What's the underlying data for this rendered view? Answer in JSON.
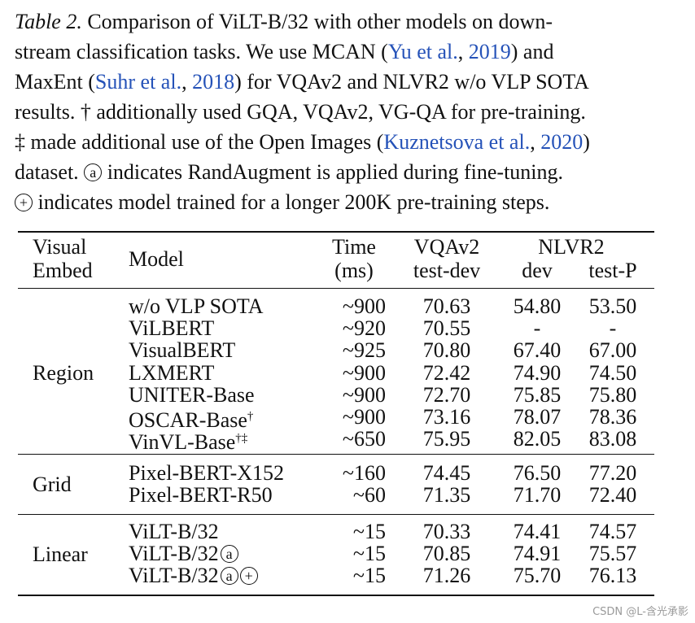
{
  "caption": {
    "label": "Table 2.",
    "l1": " Comparison of ViLT-B/32 with other models on down-",
    "l2a": "stream classification tasks. We use MCAN (",
    "cite1_author": "Yu et al.",
    "cite1_sep": ", ",
    "cite1_year": "2019",
    "l2b": ") and",
    "l3a": "MaxEnt (",
    "cite2_author": "Suhr et al.",
    "cite2_sep": ", ",
    "cite2_year": "2018",
    "l3b": ") for VQAv2 and NLVR2 w/o VLP SOTA",
    "l4": "results. † additionally used GQA, VQAv2, VG-QA for pre-training.",
    "l5a": "‡ made additional use of the Open Images (",
    "cite3_author": "Kuznetsova et al.",
    "cite3_sep": ", ",
    "cite3_year": "2020",
    "l5b": ")",
    "l6a": "dataset. ",
    "circ_a": "a",
    "l6b": " indicates RandAugment is applied during fine-tuning.",
    "circ_plus": "+",
    "l7b": " indicates model trained for a longer 200K pre-training steps."
  },
  "table": {
    "headers": {
      "embed_1": "Visual",
      "embed_2": "Embed",
      "model": "Model",
      "time_1": "Time",
      "time_2": "(ms)",
      "vqa_1": "VQAv2",
      "vqa_2": "test-dev",
      "nlvr": "NLVR2",
      "dev": "dev",
      "testp": "test-P"
    },
    "groups": [
      {
        "embed": "Region",
        "rows": [
          {
            "model": "w/o VLP SOTA",
            "sup": "",
            "time": "~900",
            "vqa": "70.63",
            "dev": "54.80",
            "testp": "53.50"
          },
          {
            "model": "ViLBERT",
            "sup": "",
            "time": "~920",
            "vqa": "70.55",
            "dev": "-",
            "testp": "-"
          },
          {
            "model": "VisualBERT",
            "sup": "",
            "time": "~925",
            "vqa": "70.80",
            "dev": "67.40",
            "testp": "67.00"
          },
          {
            "model": "LXMERT",
            "sup": "",
            "time": "~900",
            "vqa": "72.42",
            "dev": "74.90",
            "testp": "74.50"
          },
          {
            "model": "UNITER-Base",
            "sup": "",
            "time": "~900",
            "vqa": "72.70",
            "dev": "75.85",
            "testp": "75.80"
          },
          {
            "model": "OSCAR-Base",
            "sup": "†",
            "time": "~900",
            "vqa": "73.16",
            "dev": "78.07",
            "testp": "78.36"
          },
          {
            "model": "VinVL-Base",
            "sup": "†‡",
            "time": "~650",
            "vqa": "75.95",
            "dev": "82.05",
            "testp": "83.08"
          }
        ]
      },
      {
        "embed": "Grid",
        "rows": [
          {
            "model": "Pixel-BERT-X152",
            "sup": "",
            "time": "~160",
            "vqa": "74.45",
            "dev": "76.50",
            "testp": "77.20"
          },
          {
            "model": "Pixel-BERT-R50",
            "sup": "",
            "time": "~60",
            "vqa": "71.35",
            "dev": "71.70",
            "testp": "72.40"
          }
        ]
      },
      {
        "embed": "Linear",
        "rows": [
          {
            "model": "ViLT-B/32",
            "sup": "",
            "time": "~15",
            "vqa": "70.33",
            "dev": "74.41",
            "testp": "74.57"
          },
          {
            "model": "ViLT-B/32",
            "sup": "",
            "time": "~15",
            "vqa": "70.85",
            "dev": "74.91",
            "testp": "75.57",
            "circ1": "a"
          },
          {
            "model": "ViLT-B/32",
            "sup": "",
            "time": "~15",
            "vqa": "71.26",
            "dev": "75.70",
            "testp": "76.13",
            "circ1": "a",
            "circ2": "+"
          }
        ]
      }
    ]
  },
  "watermark": "CSDN @L-含光承影"
}
